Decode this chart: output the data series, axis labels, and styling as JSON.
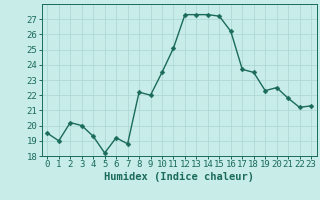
{
  "x": [
    0,
    1,
    2,
    3,
    4,
    5,
    6,
    7,
    8,
    9,
    10,
    11,
    12,
    13,
    14,
    15,
    16,
    17,
    18,
    19,
    20,
    21,
    22,
    23
  ],
  "y": [
    19.5,
    19.0,
    20.2,
    20.0,
    19.3,
    18.2,
    19.2,
    18.8,
    22.2,
    22.0,
    23.5,
    25.1,
    27.3,
    27.3,
    27.3,
    27.2,
    26.2,
    23.7,
    23.5,
    22.3,
    22.5,
    21.8,
    21.2,
    21.3
  ],
  "line_color": "#1a6b5a",
  "marker_color": "#1a6b5a",
  "bg_color": "#c8ece8",
  "grid_color": "#b0d8d4",
  "xlabel": "Humidex (Indice chaleur)",
  "ylim": [
    18,
    28
  ],
  "xlim": [
    -0.5,
    23.5
  ],
  "yticks": [
    18,
    19,
    20,
    21,
    22,
    23,
    24,
    25,
    26,
    27
  ],
  "xticks": [
    0,
    1,
    2,
    3,
    4,
    5,
    6,
    7,
    8,
    9,
    10,
    11,
    12,
    13,
    14,
    15,
    16,
    17,
    18,
    19,
    20,
    21,
    22,
    23
  ],
  "xlabel_fontsize": 7.5,
  "tick_fontsize": 6.5,
  "line_width": 1.0,
  "marker_size": 2.5
}
